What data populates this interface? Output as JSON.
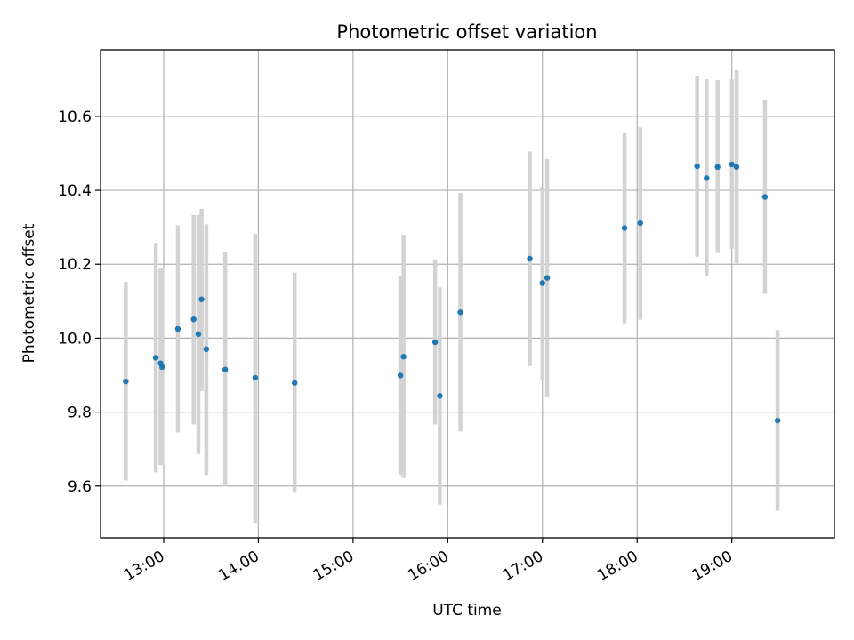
{
  "chart_data": {
    "type": "scatter",
    "title": "Photometric offset variation",
    "xlabel": "UTC time",
    "ylabel": "Photometric offset",
    "x_is_time": true,
    "xlim": [
      "12:20",
      "20:05"
    ],
    "ylim": [
      9.46,
      10.78
    ],
    "xticks": [
      "13:00",
      "14:00",
      "15:00",
      "16:00",
      "17:00",
      "18:00",
      "19:00"
    ],
    "yticks": [
      "9.6",
      "9.8",
      "10.0",
      "10.2",
      "10.4",
      "10.6"
    ],
    "grid": true,
    "colors": {
      "point": "#1f77b4",
      "errorbar": "#d3d3d3",
      "grid": "#b0b0b0"
    },
    "series": [
      {
        "points": [
          {
            "t": "12:36",
            "y": 9.883,
            "lo": 9.615,
            "hi": 10.152
          },
          {
            "t": "12:55",
            "y": 9.947,
            "lo": 9.637,
            "hi": 10.258
          },
          {
            "t": "12:58",
            "y": 9.932,
            "lo": 9.657,
            "hi": 10.19
          },
          {
            "t": "12:59",
            "y": 9.922,
            "lo": 9.657,
            "hi": 10.19
          },
          {
            "t": "13:09",
            "y": 10.025,
            "lo": 9.745,
            "hi": 10.305
          },
          {
            "t": "13:19",
            "y": 10.051,
            "lo": 9.767,
            "hi": 10.333
          },
          {
            "t": "13:22",
            "y": 10.011,
            "lo": 9.687,
            "hi": 10.333
          },
          {
            "t": "13:24",
            "y": 10.105,
            "lo": 9.857,
            "hi": 10.35
          },
          {
            "t": "13:27",
            "y": 9.97,
            "lo": 9.63,
            "hi": 10.308
          },
          {
            "t": "13:39",
            "y": 9.915,
            "lo": 9.598,
            "hi": 10.233
          },
          {
            "t": "13:58",
            "y": 9.893,
            "lo": 9.5,
            "hi": 10.282
          },
          {
            "t": "14:23",
            "y": 9.879,
            "lo": 9.582,
            "hi": 10.177
          },
          {
            "t": "15:30",
            "y": 9.899,
            "lo": 9.63,
            "hi": 10.167
          },
          {
            "t": "15:32",
            "y": 9.95,
            "lo": 9.622,
            "hi": 10.28
          },
          {
            "t": "15:52",
            "y": 9.989,
            "lo": 9.767,
            "hi": 10.212
          },
          {
            "t": "15:55",
            "y": 9.844,
            "lo": 9.55,
            "hi": 10.137
          },
          {
            "t": "16:08",
            "y": 10.07,
            "lo": 9.748,
            "hi": 10.393
          },
          {
            "t": "16:52",
            "y": 10.215,
            "lo": 9.925,
            "hi": 10.505
          },
          {
            "t": "17:00",
            "y": 10.149,
            "lo": 9.888,
            "hi": 10.41
          },
          {
            "t": "17:03",
            "y": 10.163,
            "lo": 9.84,
            "hi": 10.485
          },
          {
            "t": "17:52",
            "y": 10.298,
            "lo": 10.04,
            "hi": 10.555
          },
          {
            "t": "18:02",
            "y": 10.311,
            "lo": 10.05,
            "hi": 10.57
          },
          {
            "t": "18:38",
            "y": 10.465,
            "lo": 10.22,
            "hi": 10.71
          },
          {
            "t": "18:44",
            "y": 10.433,
            "lo": 10.167,
            "hi": 10.7
          },
          {
            "t": "18:51",
            "y": 10.463,
            "lo": 10.23,
            "hi": 10.698
          },
          {
            "t": "19:00",
            "y": 10.47,
            "lo": 10.242,
            "hi": 10.7
          },
          {
            "t": "19:03",
            "y": 10.463,
            "lo": 10.203,
            "hi": 10.725
          },
          {
            "t": "19:21",
            "y": 10.382,
            "lo": 10.12,
            "hi": 10.643
          },
          {
            "t": "19:29",
            "y": 9.777,
            "lo": 9.533,
            "hi": 10.022
          }
        ]
      }
    ]
  }
}
